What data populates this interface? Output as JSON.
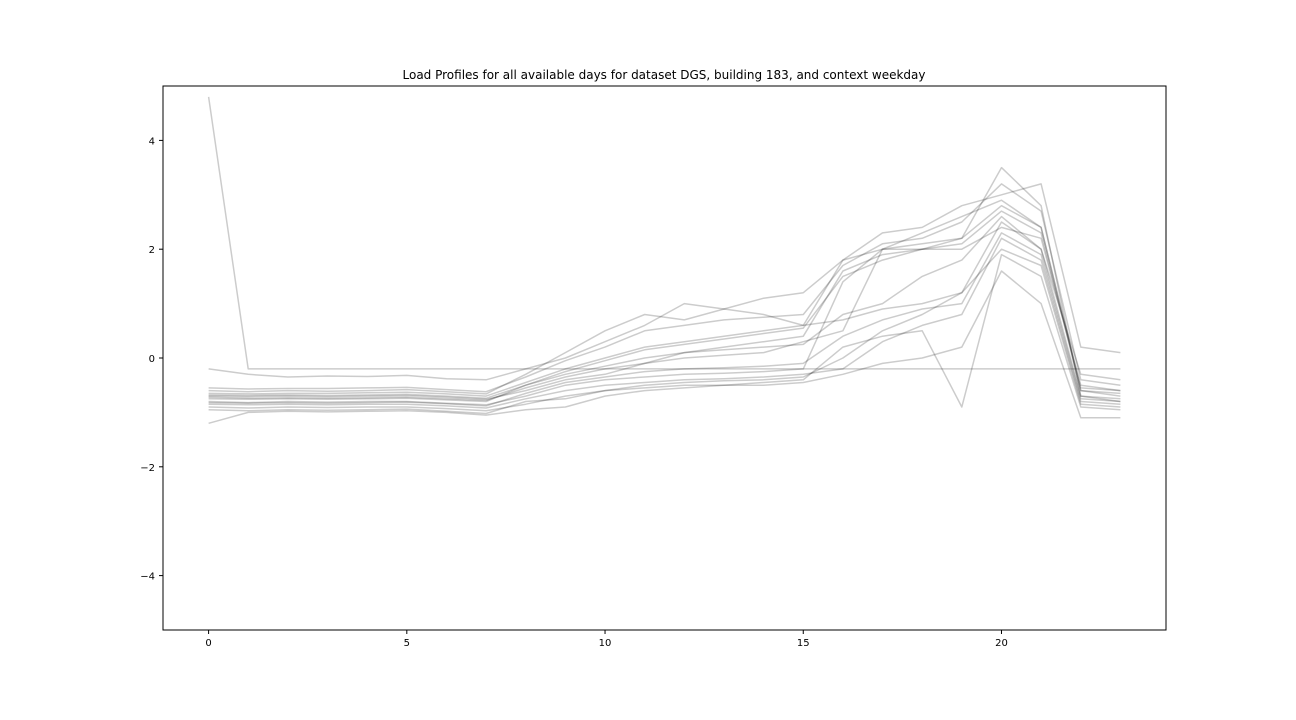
{
  "chart_data": {
    "type": "line",
    "title": "Load Profiles for all available days for dataset DGS, building 183, and context weekday",
    "xlabel": "",
    "ylabel": "",
    "xlim": [
      -1.15,
      24.15
    ],
    "ylim": [
      -5,
      5
    ],
    "x_ticks": [
      0,
      5,
      10,
      15,
      20
    ],
    "y_ticks": [
      -4,
      -2,
      0,
      2,
      4
    ],
    "x_tick_labels": [
      "0",
      "5",
      "10",
      "15",
      "20"
    ],
    "y_tick_labels": [
      "−4",
      "−2",
      "0",
      "2",
      "4"
    ],
    "grid": false,
    "legend": "none",
    "line_color": "#000000",
    "line_opacity": 0.2,
    "x": [
      0,
      1,
      2,
      3,
      4,
      5,
      6,
      7,
      8,
      9,
      10,
      11,
      12,
      13,
      14,
      15,
      16,
      17,
      18,
      19,
      20,
      21,
      22,
      23
    ],
    "series": [
      {
        "values": [
          4.8,
          -0.2,
          -0.2,
          -0.2,
          -0.2,
          -0.2,
          -0.2,
          -0.2,
          -0.2,
          -0.2,
          -0.2,
          -0.2,
          -0.2,
          -0.2,
          -0.2,
          -0.2,
          -0.2,
          -0.2,
          -0.2,
          -0.2,
          -0.2,
          -0.2,
          -0.2,
          -0.2
        ]
      },
      {
        "values": [
          -0.72,
          -0.74,
          -0.73,
          -0.74,
          -0.73,
          -0.72,
          -0.75,
          -0.78,
          -0.55,
          -0.35,
          -0.2,
          -0.1,
          0.0,
          0.05,
          0.1,
          0.3,
          0.5,
          2.0,
          2.0,
          2.0,
          2.4,
          2.2,
          -0.5,
          -0.6
        ]
      },
      {
        "values": [
          -0.8,
          -0.82,
          -0.8,
          -0.81,
          -0.8,
          -0.8,
          -0.83,
          -0.86,
          -0.7,
          -0.5,
          -0.4,
          -0.35,
          -0.3,
          -0.28,
          -0.25,
          -0.2,
          1.4,
          2.0,
          2.1,
          2.2,
          3.5,
          2.8,
          -0.7,
          -0.8
        ]
      },
      {
        "values": [
          -0.6,
          -0.62,
          -0.6,
          -0.61,
          -0.6,
          -0.58,
          -0.62,
          -0.66,
          -0.3,
          0.1,
          0.5,
          0.8,
          0.7,
          0.9,
          0.8,
          0.6,
          0.7,
          0.9,
          1.0,
          1.2,
          2.5,
          2.0,
          -0.3,
          -0.4
        ]
      },
      {
        "values": [
          -0.95,
          -0.97,
          -0.95,
          -0.96,
          -0.95,
          -0.94,
          -0.98,
          -1.02,
          -0.8,
          -0.75,
          -0.6,
          -0.55,
          -0.5,
          -0.5,
          -0.45,
          -0.4,
          0.2,
          0.4,
          0.5,
          -0.9,
          1.9,
          1.5,
          -0.9,
          -0.95
        ]
      },
      {
        "values": [
          -0.65,
          -0.66,
          -0.65,
          -0.65,
          -0.64,
          -0.63,
          -0.66,
          -0.7,
          -0.45,
          -0.2,
          0.0,
          0.2,
          0.3,
          0.4,
          0.5,
          0.6,
          1.8,
          2.0,
          2.3,
          2.6,
          2.9,
          2.4,
          -0.6,
          -0.7
        ]
      },
      {
        "values": [
          -0.85,
          -0.86,
          -0.85,
          -0.86,
          -0.85,
          -0.85,
          -0.88,
          -0.92,
          -0.75,
          -0.6,
          -0.5,
          -0.45,
          -0.4,
          -0.38,
          -0.35,
          -0.3,
          -0.2,
          0.3,
          0.6,
          0.8,
          2.2,
          1.8,
          -0.8,
          -0.85
        ]
      },
      {
        "values": [
          -0.7,
          -0.71,
          -0.7,
          -0.71,
          -0.7,
          -0.69,
          -0.72,
          -0.76,
          -0.6,
          -0.4,
          -0.3,
          -0.1,
          0.1,
          0.2,
          0.3,
          0.4,
          1.6,
          1.9,
          2.0,
          2.1,
          2.7,
          2.3,
          -0.6,
          -0.65
        ]
      },
      {
        "values": [
          -1.2,
          -1.0,
          -0.98,
          -0.99,
          -0.98,
          -0.97,
          -1.0,
          -1.05,
          -0.95,
          -0.9,
          -0.7,
          -0.6,
          -0.55,
          -0.5,
          -0.5,
          -0.45,
          -0.3,
          -0.1,
          0.0,
          0.2,
          1.6,
          1.0,
          -1.1,
          -1.1
        ]
      },
      {
        "values": [
          -0.2,
          -0.3,
          -0.35,
          -0.33,
          -0.34,
          -0.32,
          -0.38,
          -0.4,
          -0.2,
          0.0,
          0.3,
          0.6,
          1.0,
          0.9,
          1.1,
          1.2,
          1.8,
          2.3,
          2.4,
          2.8,
          3.0,
          3.2,
          0.2,
          0.1
        ]
      },
      {
        "values": [
          -0.75,
          -0.76,
          -0.75,
          -0.76,
          -0.75,
          -0.74,
          -0.77,
          -0.8,
          -0.5,
          -0.3,
          -0.15,
          0.0,
          0.1,
          0.15,
          0.2,
          0.25,
          0.8,
          1.0,
          1.5,
          1.8,
          2.6,
          2.0,
          -0.7,
          -0.75
        ]
      },
      {
        "values": [
          -0.9,
          -0.92,
          -0.9,
          -0.91,
          -0.9,
          -0.9,
          -0.93,
          -0.97,
          -0.85,
          -0.7,
          -0.6,
          -0.5,
          -0.45,
          -0.42,
          -0.4,
          -0.35,
          0.0,
          0.5,
          0.8,
          1.2,
          2.0,
          1.7,
          -0.85,
          -0.9
        ]
      },
      {
        "values": [
          -0.55,
          -0.57,
          -0.56,
          -0.56,
          -0.55,
          -0.54,
          -0.58,
          -0.62,
          -0.35,
          -0.05,
          0.2,
          0.5,
          0.6,
          0.7,
          0.75,
          0.8,
          1.7,
          2.1,
          2.2,
          2.5,
          3.2,
          2.7,
          -0.4,
          -0.5
        ]
      },
      {
        "values": [
          -0.82,
          -0.83,
          -0.82,
          -0.83,
          -0.82,
          -0.81,
          -0.84,
          -0.88,
          -0.65,
          -0.45,
          -0.35,
          -0.25,
          -0.2,
          -0.18,
          -0.15,
          -0.1,
          0.4,
          0.7,
          0.9,
          1.0,
          2.3,
          1.9,
          -0.75,
          -0.8
        ]
      },
      {
        "values": [
          -0.68,
          -0.69,
          -0.68,
          -0.69,
          -0.68,
          -0.67,
          -0.7,
          -0.74,
          -0.5,
          -0.25,
          -0.05,
          0.15,
          0.25,
          0.35,
          0.45,
          0.55,
          1.5,
          1.8,
          2.0,
          2.2,
          2.8,
          2.4,
          -0.55,
          -0.6
        ]
      }
    ]
  }
}
